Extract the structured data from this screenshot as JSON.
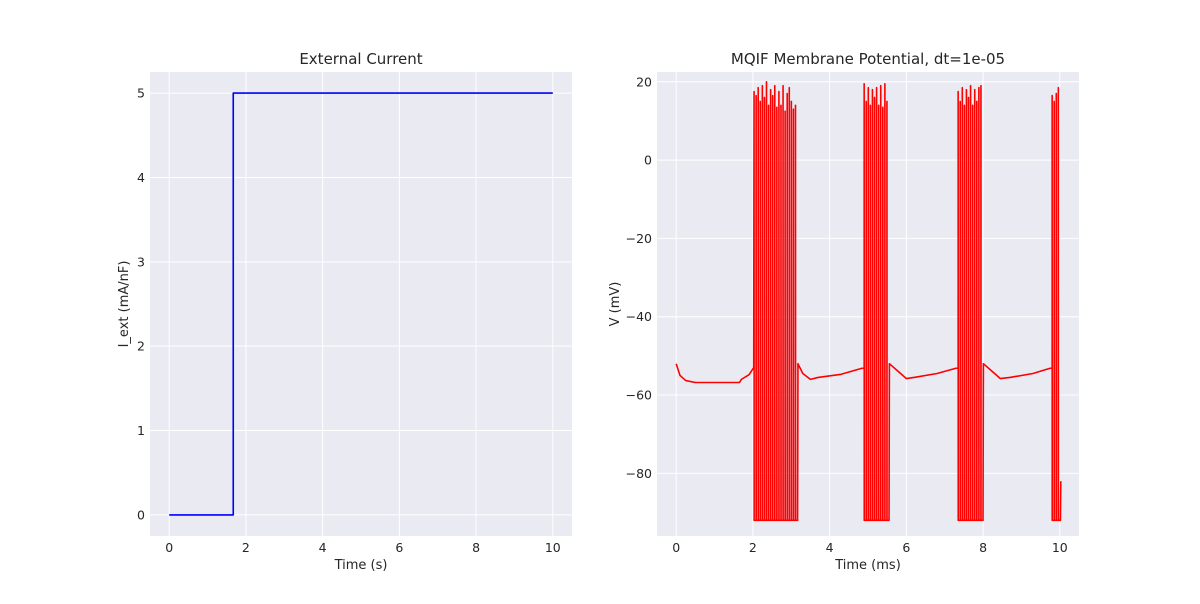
{
  "chart_data": [
    {
      "type": "line",
      "title": "External Current",
      "xlabel": "Time (s)",
      "ylabel": "I_ext (mA/nF)",
      "xlim": [
        -0.5,
        10.5
      ],
      "ylim": [
        -0.25,
        5.25
      ],
      "xticks": [
        0,
        2,
        4,
        6,
        8,
        10
      ],
      "yticks": [
        0,
        1,
        2,
        3,
        4,
        5
      ],
      "xtick_labels": [
        "0",
        "2",
        "4",
        "6",
        "8",
        "10"
      ],
      "ytick_labels": [
        "0",
        "1",
        "2",
        "3",
        "4",
        "5"
      ],
      "grid": true,
      "series": [
        {
          "color": "#0000ff",
          "x": [
            0,
            1.67,
            1.67,
            10
          ],
          "y": [
            0,
            0,
            5,
            5
          ]
        }
      ]
    },
    {
      "type": "line",
      "title": "MQIF Membrane Potential, dt=1e-05",
      "xlabel": "Time (ms)",
      "ylabel": "V (mV)",
      "xlim": [
        -0.5,
        10.5
      ],
      "ylim": [
        -96,
        22.5
      ],
      "xticks": [
        0,
        2,
        4,
        6,
        8,
        10
      ],
      "yticks": [
        20,
        0,
        -20,
        -40,
        -60,
        -80
      ],
      "xtick_labels": [
        "0",
        "2",
        "4",
        "6",
        "8",
        "10"
      ],
      "ytick_labels": [
        "20",
        "0",
        "−20",
        "−40",
        "−60",
        "−80"
      ],
      "grid": true,
      "series": [
        {
          "color": "#ff0000",
          "baseline": [
            [
              0,
              -52
            ],
            [
              0.1,
              -55
            ],
            [
              0.25,
              -56.3
            ],
            [
              0.5,
              -56.8
            ],
            [
              1.65,
              -56.8
            ],
            [
              1.7,
              -56
            ],
            [
              1.9,
              -54.8
            ],
            [
              2.02,
              -53
            ]
          ],
          "bursts": [
            {
              "start": 2.03,
              "peaks": [
                17.5,
                16.5,
                18.5,
                15,
                19,
                16,
                20,
                14,
                18,
                16.5,
                19,
                13.5,
                17.5,
                14,
                19,
                12.5,
                17,
                18.5,
                15,
                13,
                14
              ],
              "trough": -92,
              "end_v": -52,
              "recovery": [
                [
                  3.3,
                  -54.5
                ],
                [
                  3.5,
                  -56
                ],
                [
                  3.7,
                  -55.5
                ],
                [
                  4.3,
                  -54.7
                ],
                [
                  4.9,
                  -53
                ]
              ]
            },
            {
              "start": 4.9,
              "peaks": [
                19.5,
                15,
                18.5,
                14,
                18,
                16,
                18.5,
                14,
                19,
                13.5,
                19.5,
                15
              ],
              "trough": -92,
              "end_v": -52,
              "recovery": [
                [
                  5.85,
                  -54.5
                ],
                [
                  6.0,
                  -55.8
                ],
                [
                  6.2,
                  -55.5
                ],
                [
                  6.8,
                  -54.5
                ],
                [
                  7.35,
                  -53
                ]
              ]
            },
            {
              "start": 7.35,
              "peaks": [
                17.5,
                15,
                18.5,
                14,
                18,
                16,
                19,
                14,
                18,
                15,
                18.5,
                19
              ],
              "trough": -92,
              "end_v": -52,
              "recovery": [
                [
                  8.3,
                  -54.5
                ],
                [
                  8.45,
                  -55.8
                ],
                [
                  8.7,
                  -55.5
                ],
                [
                  9.3,
                  -54.5
                ],
                [
                  9.8,
                  -53
                ]
              ]
            },
            {
              "start": 9.8,
              "peaks": [
                16.5,
                15,
                17,
                18.5
              ],
              "trough": -92,
              "end_v": -82,
              "recovery": []
            }
          ]
        }
      ]
    }
  ]
}
